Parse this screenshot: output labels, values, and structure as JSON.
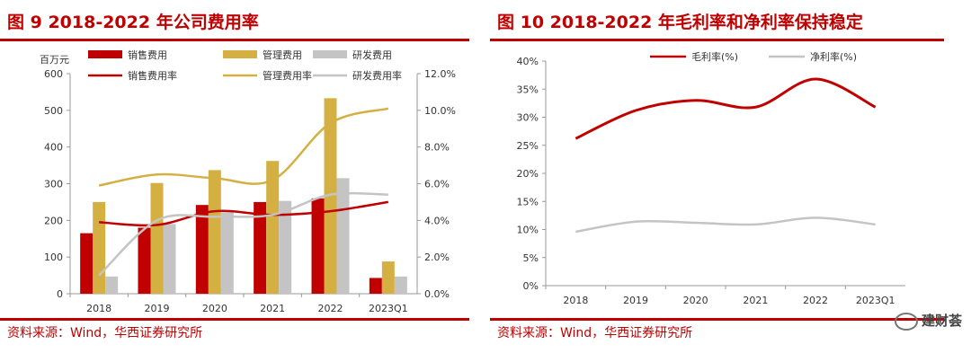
{
  "left": {
    "title": "图 9 2018-2022 年公司费用率",
    "source": "资料来源：Wind，华西证券研究所",
    "colors": {
      "red": "#c00000",
      "gold": "#d4b043",
      "gray": "#c4c4c4"
    },
    "chart_data": {
      "type": "bar",
      "categories": [
        "2018",
        "2019",
        "2020",
        "2021",
        "2022",
        "2023Q1"
      ],
      "y_unit_label": "百万元",
      "ylim": [
        0,
        600
      ],
      "y_ticks": [
        "0",
        "100",
        "200",
        "300",
        "400",
        "500",
        "600"
      ],
      "y2lim": [
        0,
        12
      ],
      "y2_ticks": [
        "0.0%",
        "2.0%",
        "4.0%",
        "6.0%",
        "8.0%",
        "10.0%",
        "12.0%"
      ],
      "series": [
        {
          "name": "销售费用",
          "kind": "bar",
          "values": [
            165,
            180,
            242,
            250,
            260,
            43
          ]
        },
        {
          "name": "管理费用",
          "kind": "bar",
          "values": [
            250,
            302,
            337,
            362,
            533,
            88
          ]
        },
        {
          "name": "研发费用",
          "kind": "bar",
          "values": [
            47,
            190,
            222,
            253,
            315,
            47
          ]
        },
        {
          "name": "销售费用率",
          "kind": "line",
          "axis": "right",
          "values": [
            3.9,
            3.75,
            4.5,
            4.3,
            4.5,
            5.0
          ]
        },
        {
          "name": "管理费用率",
          "kind": "line",
          "axis": "right",
          "values": [
            5.9,
            6.5,
            6.3,
            6.2,
            9.3,
            10.1
          ]
        },
        {
          "name": "研发费用率",
          "kind": "line",
          "axis": "right",
          "values": [
            1.0,
            4.0,
            4.2,
            4.3,
            5.4,
            5.4
          ]
        }
      ]
    }
  },
  "right": {
    "title": "图 10 2018-2022 年毛利率和净利率保持稳定",
    "source": "资料来源：Wind，华西证券研究所",
    "watermark": "建财荟",
    "colors": {
      "red": "#c00000",
      "gray": "#c4c4c4"
    },
    "chart_data": {
      "type": "line",
      "categories": [
        "2018",
        "2019",
        "2020",
        "2021",
        "2022",
        "2023Q1"
      ],
      "ylim": [
        0,
        40
      ],
      "y_ticks": [
        "0%",
        "5%",
        "10%",
        "15%",
        "20%",
        "25%",
        "30%",
        "35%",
        "40%"
      ],
      "series": [
        {
          "name": "毛利率(%)",
          "values": [
            26.2,
            31.2,
            33.0,
            31.8,
            36.8,
            31.8
          ]
        },
        {
          "name": "净利率(%)",
          "values": [
            9.6,
            11.4,
            11.2,
            10.9,
            12.1,
            10.9
          ]
        }
      ]
    }
  }
}
